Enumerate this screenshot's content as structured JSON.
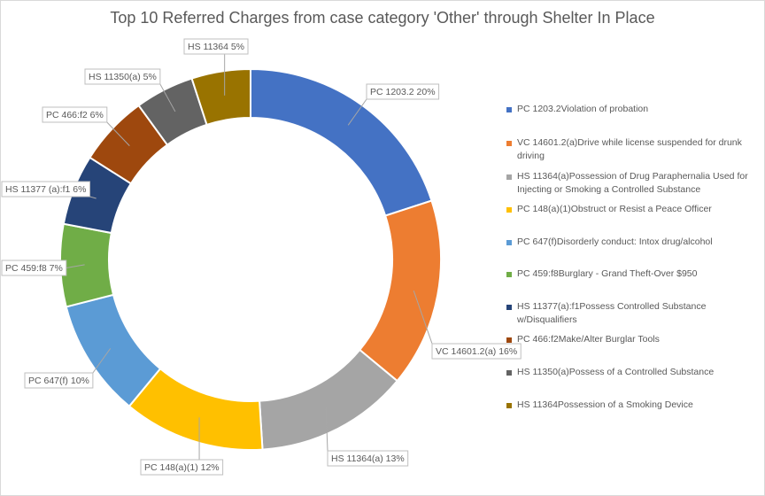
{
  "chart_data": {
    "type": "pie",
    "variant": "doughnut",
    "title": "Top 10 Referred Charges from case category 'Other' through Shelter In Place",
    "legend_position": "right",
    "slices": [
      {
        "label": "PC 1203.2",
        "value": 20,
        "data_label": "PC 1203.2 20%",
        "legend": "PC  1203.2Violation of probation",
        "color": "#4472C4"
      },
      {
        "label": "VC 14601.2(a)",
        "value": 16,
        "data_label": "VC 14601.2(a) 16%",
        "legend": "VC  14601.2(a)Drive while license suspended for drunk driving",
        "color": "#ED7D31"
      },
      {
        "label": "HS 11364(a)",
        "value": 13,
        "data_label": "HS 11364(a) 13%",
        "legend": "HS  11364(a)Possession of Drug Paraphernalia Used for Injecting or Smoking a Controlled Substance",
        "color": "#A5A5A5"
      },
      {
        "label": "PC 148(a)(1)",
        "value": 12,
        "data_label": "PC 148(a)(1) 12%",
        "legend": "PC  148(a)(1)Obstruct or Resist a Peace Officer",
        "color": "#FFC000"
      },
      {
        "label": "PC 647(f)",
        "value": 10,
        "data_label": "PC 647(f) 10%",
        "legend": "PC  647(f)Disorderly conduct: Intox drug/alcohol",
        "color": "#5B9BD5"
      },
      {
        "label": "PC 459:f8",
        "value": 7,
        "data_label": "PC 459:f8 7%",
        "legend": "PC  459:f8Burglary - Grand Theft-Over $950",
        "color": "#70AD47"
      },
      {
        "label": "HS 11377 (a):f1",
        "value": 6,
        "data_label": "HS 11377 (a):f1 6%",
        "legend": "HS  11377(a):f1Possess Controlled Substance w/Disqualifiers",
        "color": "#264478"
      },
      {
        "label": "PC 466:f2",
        "value": 6,
        "data_label": "PC 466:f2 6%",
        "legend": "PC  466:f2Make/Alter Burglar Tools",
        "color": "#9E480E"
      },
      {
        "label": "HS 11350(a)",
        "value": 5,
        "data_label": "HS 11350(a) 5%",
        "legend": "HS  11350(a)Possess of a Controlled Substance",
        "color": "#636363"
      },
      {
        "label": "HS 11364",
        "value": 5,
        "data_label": "HS 11364 5%",
        "legend": "HS  11364Possession of a Smoking Device",
        "color": "#997300"
      }
    ]
  }
}
